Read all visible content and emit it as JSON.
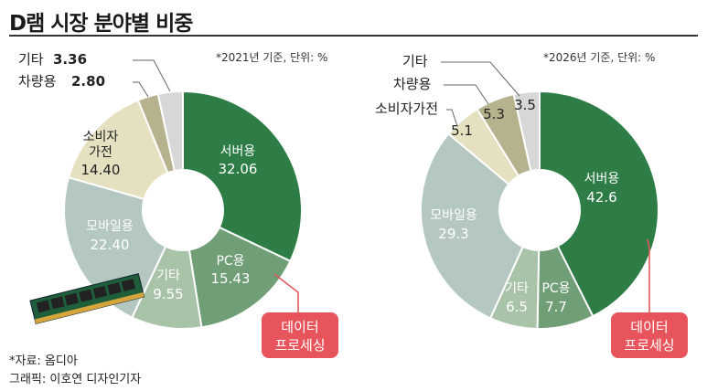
{
  "page": {
    "title": "D램 시장 분야별 비중",
    "source": "*자료: 옴디아",
    "credit": "그래픽: 이호연 디자인기자"
  },
  "colors": {
    "server": "#2e7d46",
    "pc": "#6f9e77",
    "other_seg": "#a9c3a9",
    "mobile": "#b4c7c1",
    "consumer": "#e4e0c0",
    "vehicle": "#b7b28e",
    "etc": "#d7d7d7",
    "badge": "#e8545c",
    "leader": "#e35a5a"
  },
  "badge_label": [
    "데이터",
    "프로세싱"
  ],
  "chart_data": [
    {
      "type": "pie",
      "note": "*2021년 기준, 단위: %",
      "slices": [
        {
          "key": "server",
          "label": "서버용",
          "value": 32.06,
          "value_text": "32.06"
        },
        {
          "key": "pc",
          "label": "PC용",
          "value": 15.43,
          "value_text": "15.43"
        },
        {
          "key": "other_seg",
          "label": "기타",
          "value": 9.55,
          "value_text": "9.55"
        },
        {
          "key": "mobile",
          "label": "모바일용",
          "value": 22.4,
          "value_text": "22.40"
        },
        {
          "key": "consumer",
          "label": "소비자\n가전",
          "value": 14.4,
          "value_text": "14.40"
        },
        {
          "key": "vehicle",
          "label": "차량용",
          "value": 2.8,
          "value_text": "2.80"
        },
        {
          "key": "etc",
          "label": "기타",
          "value": 3.36,
          "value_text": "3.36"
        }
      ]
    },
    {
      "type": "pie",
      "note": "*2026년 기준, 단위: %",
      "slices": [
        {
          "key": "server",
          "label": "서버용",
          "value": 42.6,
          "value_text": "42.6"
        },
        {
          "key": "pc",
          "label": "PC용",
          "value": 7.7,
          "value_text": "7.7"
        },
        {
          "key": "other_seg",
          "label": "기타",
          "value": 6.5,
          "value_text": "6.5"
        },
        {
          "key": "mobile",
          "label": "모바일용",
          "value": 29.3,
          "value_text": "29.3"
        },
        {
          "key": "consumer",
          "label": "소비자가전",
          "value": 5.1,
          "value_text": "5.1"
        },
        {
          "key": "vehicle",
          "label": "차량용",
          "value": 5.3,
          "value_text": "5.3"
        },
        {
          "key": "etc",
          "label": "기타",
          "value": 3.5,
          "value_text": "3.5"
        }
      ]
    }
  ]
}
